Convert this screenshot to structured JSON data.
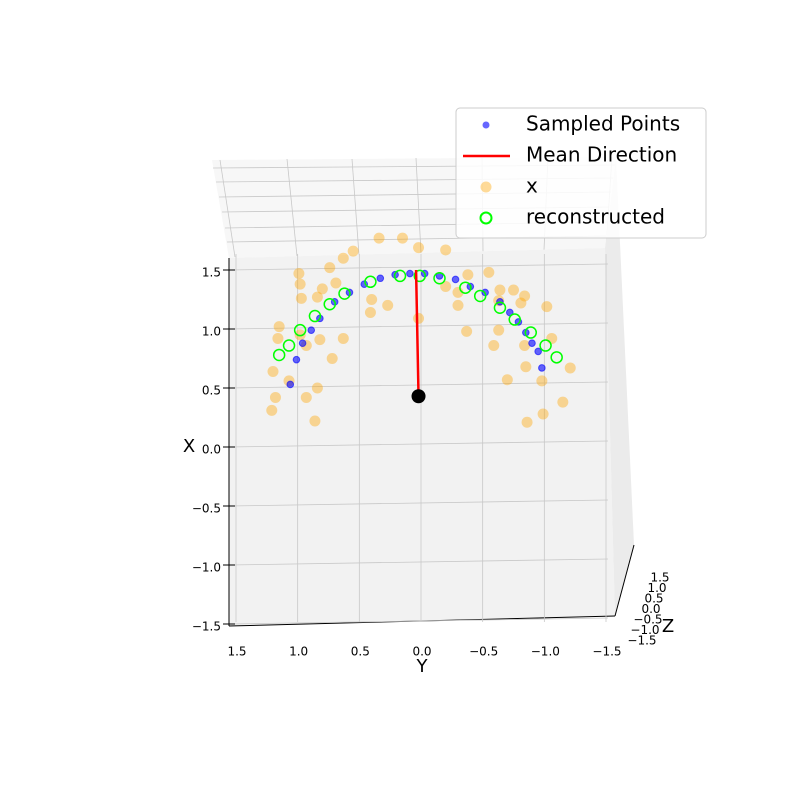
{
  "chart_data": {
    "type": "scatter3d",
    "x_label": "Y",
    "y_label": "X",
    "z_label": "Z",
    "xlim": [
      1.5,
      -1.5
    ],
    "ylim": [
      -1.5,
      1.5
    ],
    "zlim": [
      -1.5,
      1.5
    ],
    "xticks": [
      1.5,
      {
        "value": 1,
        "label": "1.0"
      },
      0.5,
      {
        "value": 0,
        "label": "0.0"
      },
      {
        "value": -0.5,
        "label": "−0.5"
      },
      {
        "value": -1,
        "label": "−1.0"
      },
      {
        "value": -1.5,
        "label": "−1.5"
      }
    ],
    "yticks": [
      {
        "value": -1.5,
        "label": "−1.5"
      },
      {
        "value": -1,
        "label": "−1.0"
      },
      {
        "value": -0.5,
        "label": "−0.5"
      },
      {
        "value": 0,
        "label": "0.0"
      },
      0.5,
      {
        "value": 1,
        "label": "1.0"
      },
      1.5
    ],
    "zticks": [
      1.5,
      {
        "value": 1,
        "label": "1.0"
      },
      0.5,
      {
        "value": 0,
        "label": "0.0"
      },
      {
        "value": -0.5,
        "label": "−0.5"
      },
      {
        "value": -1,
        "label": "−1.0"
      },
      {
        "value": -1.5,
        "label": "−1.5"
      }
    ],
    "grid": true,
    "legend": "upper right",
    "series": [
      {
        "name": "Sampled Points",
        "kind": "dot",
        "color": "#0000ff",
        "x": [
          1.06,
          1.01,
          0.96,
          0.89,
          0.82,
          0.7,
          0.58,
          0.46,
          0.33,
          0.21,
          0.09,
          -0.03,
          -0.15,
          -0.28,
          -0.4,
          -0.52,
          -0.64,
          -0.72,
          -0.79,
          -0.85,
          -0.9,
          -0.95,
          -0.98
        ],
        "y": [
          0.53,
          0.74,
          0.88,
          0.99,
          1.09,
          1.23,
          1.31,
          1.38,
          1.43,
          1.46,
          1.47,
          1.47,
          1.45,
          1.42,
          1.36,
          1.31,
          1.23,
          1.14,
          1.06,
          0.97,
          0.88,
          0.81,
          0.67
        ]
      },
      {
        "name": "Mean Direction",
        "kind": "line",
        "color": "#ff0000",
        "x": [
          0.02,
          0.04
        ],
        "y": [
          0.43,
          1.5
        ]
      },
      {
        "name": "x",
        "kind": "blob",
        "color": "#ffa500",
        "x": [
          0.34,
          0.15,
          0.55,
          0.02,
          -0.2,
          0.63,
          0.74,
          0.99,
          -0.55,
          -0.38,
          0.98,
          0.8,
          0.69,
          0.97,
          0.84,
          0.4,
          0.27,
          -0.2,
          -0.3,
          -0.64,
          -0.75,
          -0.84,
          -0.63,
          -0.81,
          -1.02,
          0.41,
          0.02,
          1.15,
          1.16,
          0.98,
          0.82,
          0.63,
          0.93,
          0.72,
          -0.37,
          -0.63,
          -0.59,
          -1.06,
          -0.84,
          1.2,
          1.07,
          0.84,
          0.93,
          1.18,
          1.21,
          0.86,
          -0.7,
          -0.85,
          -0.98,
          -1.21,
          -1.15,
          -0.99,
          -0.86,
          -0.3
        ],
        "y": [
          1.77,
          1.77,
          1.66,
          1.69,
          1.67,
          1.6,
          1.52,
          1.47,
          1.48,
          1.46,
          1.38,
          1.34,
          1.39,
          1.26,
          1.27,
          1.25,
          1.2,
          1.36,
          1.31,
          1.33,
          1.33,
          1.28,
          1.24,
          1.22,
          1.19,
          1.14,
          1.09,
          1.02,
          0.92,
          0.95,
          0.91,
          0.92,
          0.86,
          0.75,
          0.98,
          0.99,
          0.86,
          0.92,
          0.86,
          0.64,
          0.56,
          0.5,
          0.42,
          0.42,
          0.31,
          0.22,
          0.57,
          0.68,
          0.56,
          0.67,
          0.38,
          0.28,
          0.21,
          1.2
        ]
      },
      {
        "name": "reconstructed",
        "kind": "ring",
        "color": "#00ff00",
        "x": [
          1.15,
          1.07,
          0.98,
          0.86,
          0.74,
          0.62,
          0.41,
          0.17,
          0.01,
          -0.15,
          -0.36,
          -0.48,
          -0.64,
          -0.76,
          -0.89,
          -1.01,
          -1.1
        ],
        "y": [
          0.78,
          0.86,
          0.99,
          1.11,
          1.21,
          1.3,
          1.4,
          1.45,
          1.45,
          1.43,
          1.35,
          1.28,
          1.18,
          1.08,
          0.97,
          0.86,
          0.76
        ]
      }
    ],
    "origin_point": {
      "x": 0.02,
      "y": 0.43,
      "color": "#000000"
    }
  }
}
